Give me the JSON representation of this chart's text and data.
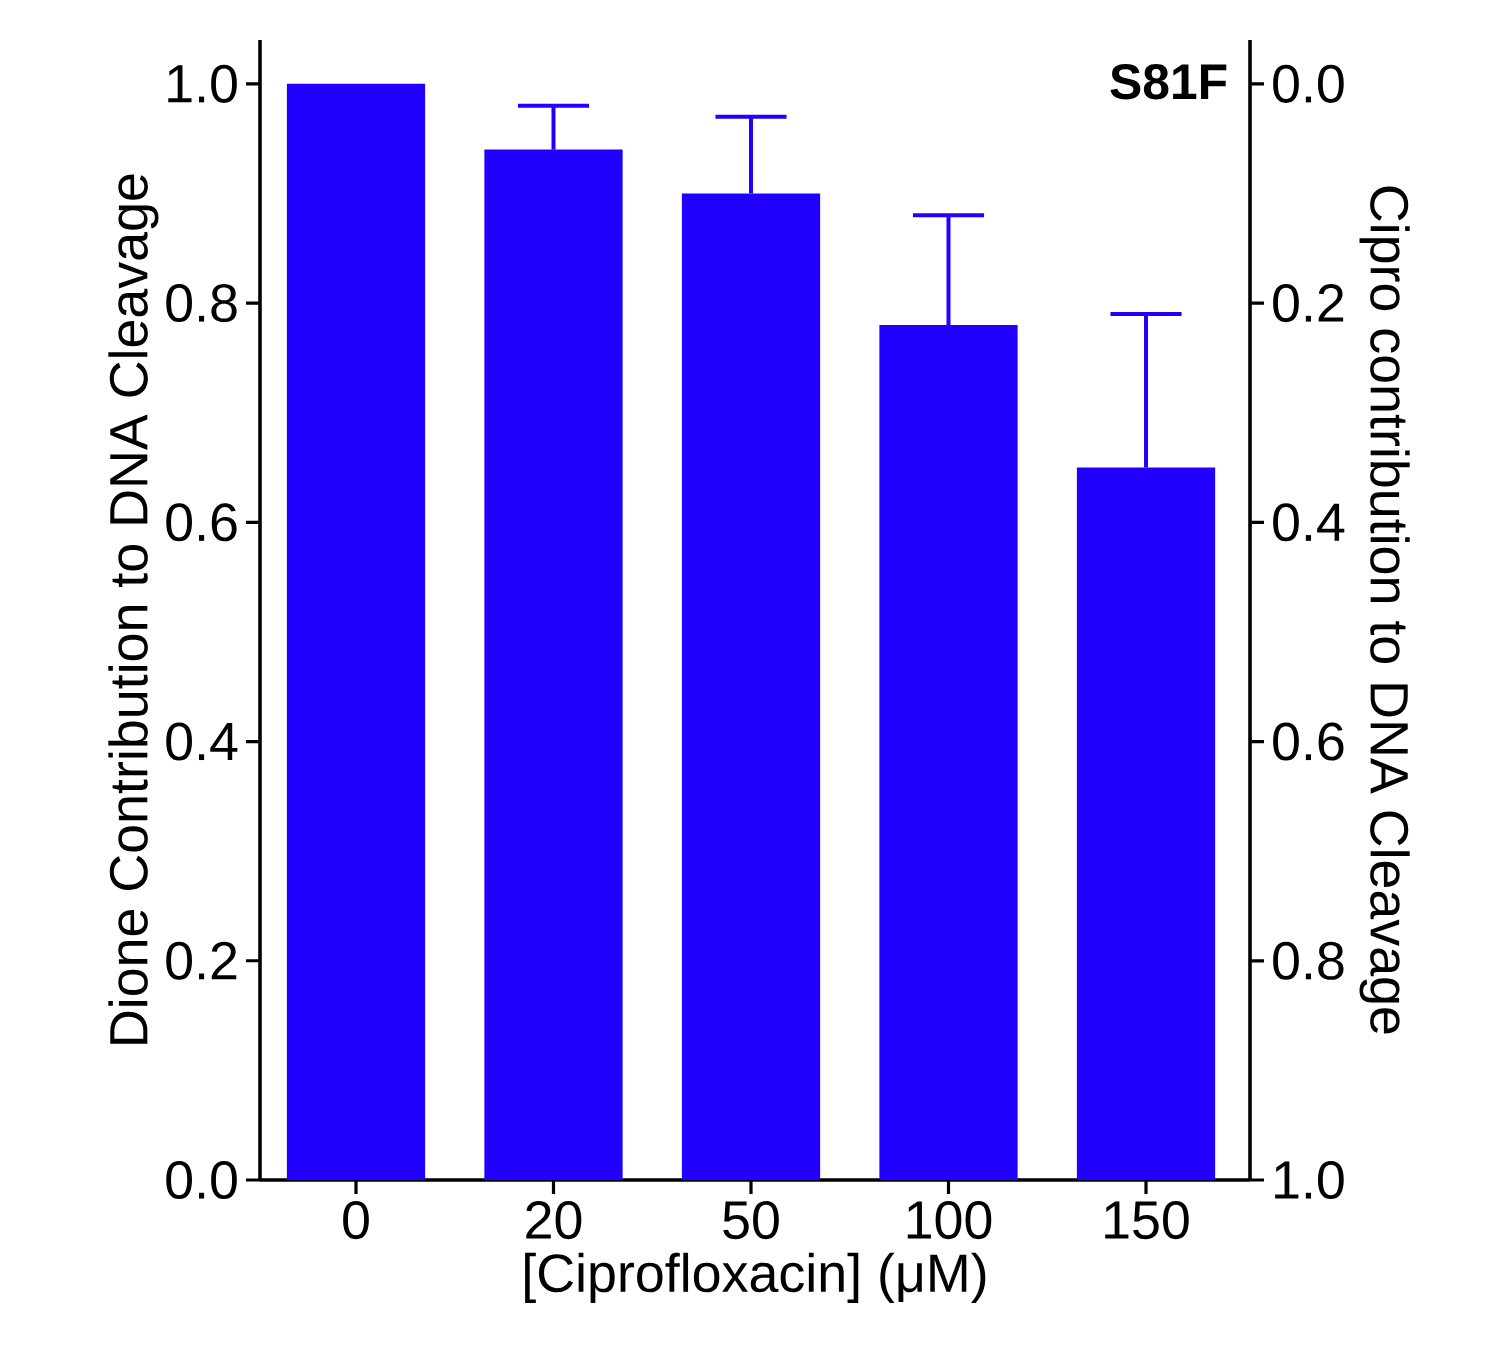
{
  "chart_data": {
    "type": "bar",
    "title": "S81F",
    "categories": [
      "0",
      "20",
      "50",
      "100",
      "150"
    ],
    "values": [
      1.0,
      0.94,
      0.9,
      0.78,
      0.65
    ],
    "errors": [
      null,
      [
        0.94,
        0.98
      ],
      [
        0.9,
        0.97
      ],
      [
        0.78,
        0.88
      ],
      [
        0.65,
        0.79
      ]
    ],
    "color": "#2200ff",
    "xlabel": "[Ciprofloxacin] (μM)",
    "ylabel": "Dione Contribution to DNA Cleavage",
    "y2label": "Cipro contribution to DNA Cleavage",
    "ylim": [
      0,
      1.04
    ],
    "yticks": [
      {
        "value": 0,
        "label": "0.0"
      },
      0.2,
      0.4,
      0.6,
      0.8,
      {
        "value": 1,
        "label": "1.0"
      }
    ],
    "y2lim": [
      1.0,
      -0.04
    ],
    "y2ticks": [
      {
        "value": 0,
        "label": "0.0"
      },
      0.2,
      0.4,
      0.6,
      0.8,
      {
        "value": 1,
        "label": "1.0"
      }
    ],
    "grid": false
  }
}
